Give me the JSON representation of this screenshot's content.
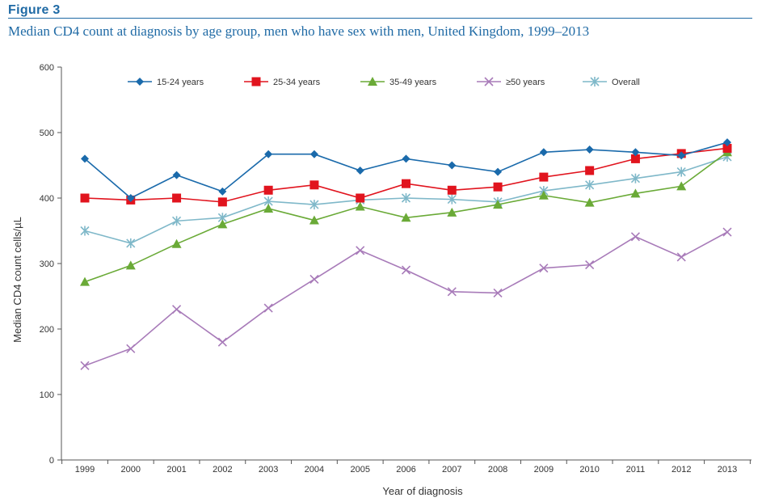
{
  "figure_label": "Figure 3",
  "figure_title": "Median CD4 count at diagnosis by age group, men who have sex with men, United Kingdom, 1999–2013",
  "chart_data": {
    "type": "line",
    "xlabel": "Year of diagnosis",
    "ylabel": "Median CD4 count cells/µL",
    "ylim": [
      0,
      600
    ],
    "yticks": [
      0,
      100,
      200,
      300,
      400,
      500,
      600
    ],
    "grid": false,
    "legend_position": "top",
    "categories": [
      "1999",
      "2000",
      "2001",
      "2002",
      "2003",
      "2004",
      "2005",
      "2006",
      "2007",
      "2008",
      "2009",
      "2010",
      "2011",
      "2012",
      "2013"
    ],
    "series": [
      {
        "name": "15-24 years",
        "color": "#1a6aab",
        "marker": "diamond",
        "values": [
          460,
          400,
          435,
          410,
          467,
          467,
          442,
          460,
          450,
          440,
          470,
          474,
          470,
          465,
          485
        ]
      },
      {
        "name": "25-34 years",
        "color": "#e1141e",
        "marker": "square",
        "values": [
          400,
          397,
          400,
          394,
          412,
          420,
          400,
          422,
          412,
          417,
          432,
          442,
          460,
          468,
          476
        ]
      },
      {
        "name": "35-49 years",
        "color": "#6aaa37",
        "marker": "triangle",
        "values": [
          272,
          297,
          330,
          360,
          384,
          366,
          387,
          370,
          378,
          390,
          404,
          393,
          407,
          418,
          470
        ]
      },
      {
        "name": "≥50 years",
        "color": "#a87bb9",
        "marker": "x",
        "values": [
          144,
          170,
          230,
          180,
          232,
          276,
          320,
          290,
          257,
          255,
          293,
          298,
          341,
          310,
          348
        ]
      },
      {
        "name": "Overall",
        "color": "#7fb8c9",
        "marker": "asterisk",
        "values": [
          350,
          331,
          365,
          370,
          395,
          390,
          397,
          400,
          398,
          394,
          411,
          420,
          430,
          440,
          463
        ]
      }
    ]
  }
}
